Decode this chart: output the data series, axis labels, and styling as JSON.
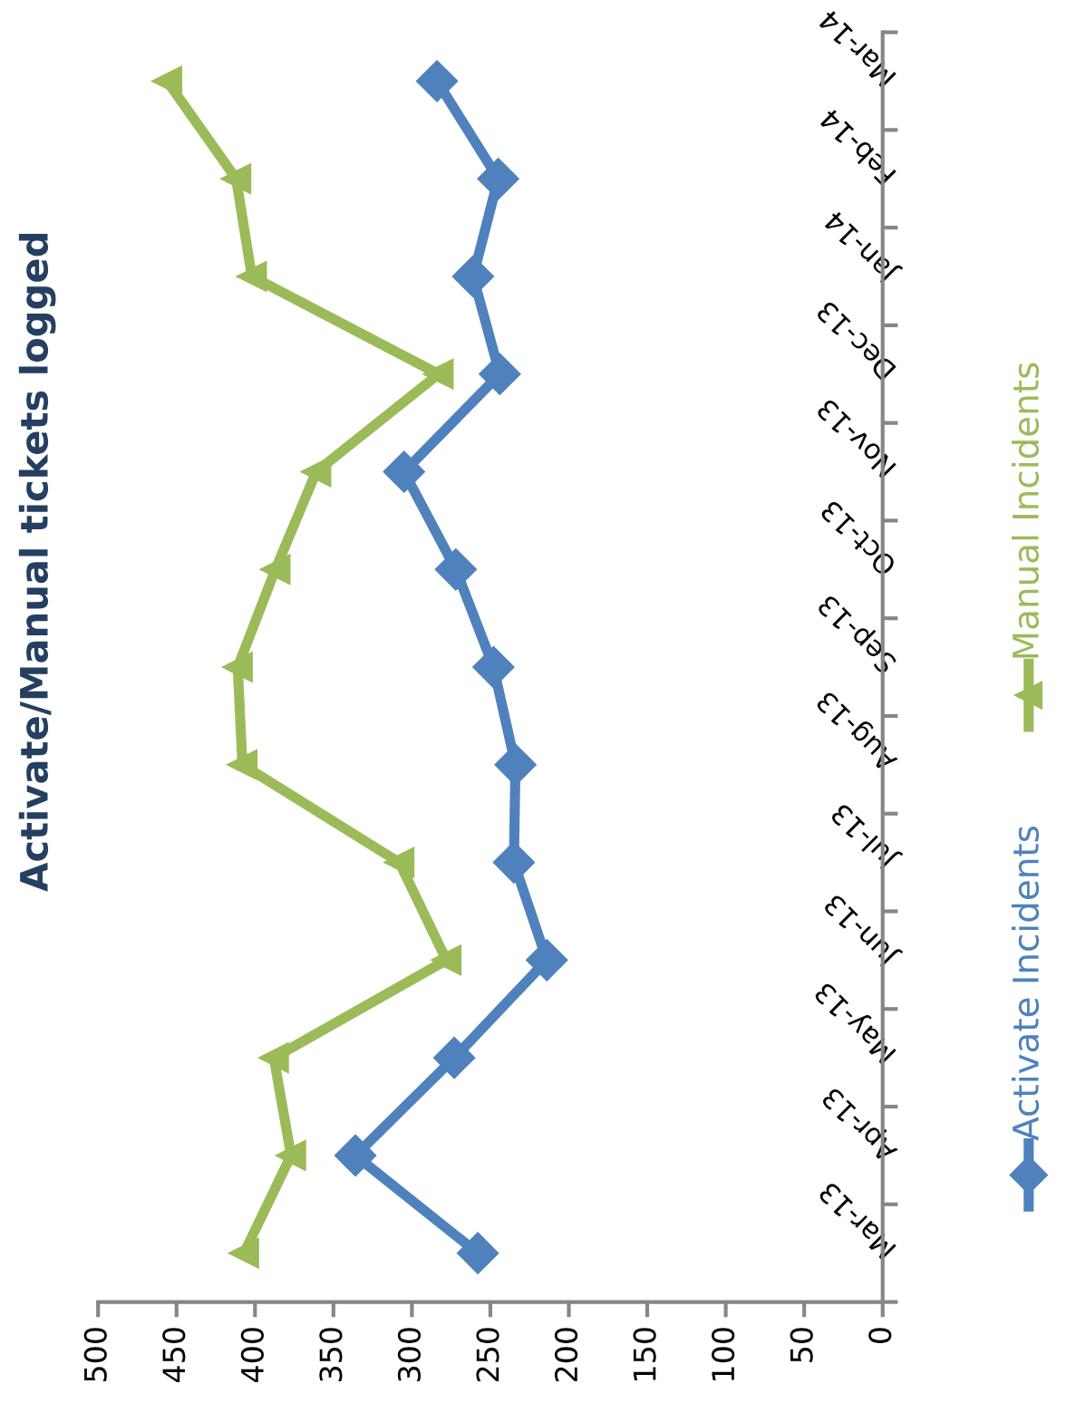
{
  "chart_data": {
    "type": "line",
    "title": "Activate/Manual tickets logged",
    "orientation": "horizontal",
    "categories": [
      "Mar-14",
      "Feb-14",
      "Jan-14",
      "Dec-13",
      "Nov-13",
      "Oct-13",
      "Sep-13",
      "Aug-13",
      "Jul-13",
      "Jun-13",
      "May-13",
      "Apr-13",
      "Mar-13"
    ],
    "series": [
      {
        "name": "Activate Incidents",
        "color": "#4f81bd",
        "marker": "diamond",
        "values": [
          284,
          245,
          261,
          244,
          305,
          272,
          248,
          234,
          235,
          214,
          273,
          336,
          258
        ]
      },
      {
        "name": "Manual Incidents",
        "color": "#9bbb59",
        "marker": "triangle",
        "values": [
          456,
          412,
          402,
          283,
          361,
          387,
          411,
          408,
          308,
          278,
          388,
          377,
          407
        ]
      }
    ],
    "xlim": [
      500,
      0
    ],
    "xticks": [
      500,
      450,
      400,
      350,
      300,
      250,
      200,
      150,
      100,
      50,
      0
    ],
    "grid": false,
    "legend": "right",
    "line_style": "solid"
  }
}
